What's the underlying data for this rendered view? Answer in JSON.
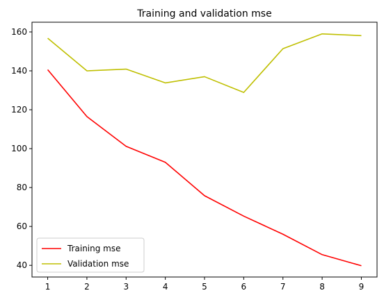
{
  "chart_data": {
    "type": "line",
    "title": "Training and validation mse",
    "xlabel": "",
    "ylabel": "",
    "x": [
      1,
      2,
      3,
      4,
      5,
      6,
      7,
      8,
      9
    ],
    "xticks": [
      1,
      2,
      3,
      4,
      5,
      6,
      7,
      8,
      9
    ],
    "yticks": [
      40,
      60,
      80,
      100,
      120,
      140,
      160
    ],
    "xlim": [
      0.6,
      9.4
    ],
    "ylim": [
      34.0,
      165.0
    ],
    "grid": false,
    "legend": "lower-left",
    "series": [
      {
        "name": "Training mse",
        "color": "#ff0000",
        "values": [
          140.6,
          116.5,
          101.2,
          93.0,
          75.8,
          65.3,
          56.0,
          45.5,
          39.8
        ]
      },
      {
        "name": "Validation mse",
        "color": "#bfbf00",
        "values": [
          156.8,
          140.0,
          140.9,
          133.8,
          137.0,
          128.9,
          151.4,
          159.0,
          158.1
        ]
      }
    ]
  }
}
